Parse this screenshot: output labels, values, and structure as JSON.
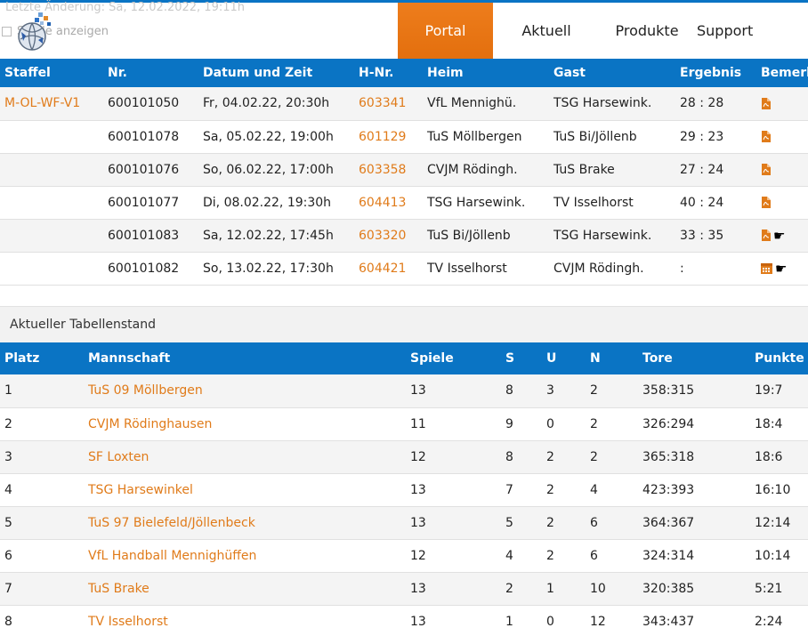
{
  "header": {
    "faded_text": "Letzte Änderung: Sa, 12.02.2022, 19:11h",
    "show_games_label": "Spiele anzeigen",
    "nav": [
      "Portal",
      "Aktuell",
      "Produkte",
      "Support"
    ]
  },
  "games": {
    "headers": [
      "Staffel",
      "Nr.",
      "Datum und Zeit",
      "H-Nr.",
      "Heim",
      "Gast",
      "Ergebnis",
      "Bemerk"
    ],
    "rows": [
      {
        "staffel": "M-OL-WF-V1",
        "nr": "600101050",
        "datum": "Fr, 04.02.22, 20:30h",
        "hnr": "603341",
        "heim": "VfL Mennighü.",
        "gast": "TSG Harsewink.",
        "ergebnis": "28 : 28",
        "icons": [
          "pdf-icon"
        ]
      },
      {
        "staffel": "",
        "nr": "600101078",
        "datum": "Sa, 05.02.22, 19:00h",
        "hnr": "601129",
        "heim": "TuS Möllbergen",
        "gast": "TuS Bi/Jöllenb",
        "ergebnis": "29 : 23",
        "icons": [
          "pdf-icon"
        ]
      },
      {
        "staffel": "",
        "nr": "600101076",
        "datum": "So, 06.02.22, 17:00h",
        "hnr": "603358",
        "heim": "CVJM Rödingh.",
        "gast": "TuS Brake",
        "ergebnis": "27 : 24",
        "icons": [
          "pdf-icon"
        ]
      },
      {
        "staffel": "",
        "nr": "600101077",
        "datum": "Di, 08.02.22, 19:30h",
        "hnr": "604413",
        "heim": "TSG Harsewink.",
        "gast": "TV Isselhorst",
        "ergebnis": "40 : 24",
        "icons": [
          "pdf-icon"
        ]
      },
      {
        "staffel": "",
        "nr": "600101083",
        "datum": "Sa, 12.02.22, 17:45h",
        "hnr": "603320",
        "heim": "TuS Bi/Jöllenb",
        "gast": "TSG Harsewink.",
        "ergebnis": "33 : 35",
        "icons": [
          "pdf-icon",
          "pointing-hand-icon"
        ]
      },
      {
        "staffel": "",
        "nr": "600101082",
        "datum": "So, 13.02.22, 17:30h",
        "hnr": "604421",
        "heim": "TV Isselhorst",
        "gast": "CVJM Rödingh.",
        "ergebnis": ":",
        "icons": [
          "calendar-icon",
          "pointing-hand-icon"
        ]
      }
    ]
  },
  "standings": {
    "title": "Aktueller Tabellenstand",
    "headers": [
      "Platz",
      "Mannschaft",
      "Spiele",
      "S",
      "U",
      "N",
      "Tore",
      "Punkte"
    ],
    "rows": [
      {
        "platz": "1",
        "team": "TuS 09 Möllbergen",
        "spiele": "13",
        "s": "8",
        "u": "3",
        "n": "2",
        "tore": "358:315",
        "punkte": "19:7"
      },
      {
        "platz": "2",
        "team": "CVJM Rödinghausen",
        "spiele": "11",
        "s": "9",
        "u": "0",
        "n": "2",
        "tore": "326:294",
        "punkte": "18:4"
      },
      {
        "platz": "3",
        "team": "SF Loxten",
        "spiele": "12",
        "s": "8",
        "u": "2",
        "n": "2",
        "tore": "365:318",
        "punkte": "18:6"
      },
      {
        "platz": "4",
        "team": "TSG Harsewinkel",
        "spiele": "13",
        "s": "7",
        "u": "2",
        "n": "4",
        "tore": "423:393",
        "punkte": "16:10"
      },
      {
        "platz": "5",
        "team": "TuS 97 Bielefeld/Jöllenbeck",
        "spiele": "13",
        "s": "5",
        "u": "2",
        "n": "6",
        "tore": "364:367",
        "punkte": "12:14"
      },
      {
        "platz": "6",
        "team": "VfL Handball Mennighüffen",
        "spiele": "12",
        "s": "4",
        "u": "2",
        "n": "6",
        "tore": "324:314",
        "punkte": "10:14"
      },
      {
        "platz": "7",
        "team": "TuS Brake",
        "spiele": "13",
        "s": "2",
        "u": "1",
        "n": "10",
        "tore": "320:385",
        "punkte": "5:21"
      },
      {
        "platz": "8",
        "team": "TV Isselhorst",
        "spiele": "13",
        "s": "1",
        "u": "0",
        "n": "12",
        "tore": "343:437",
        "punkte": "2:24"
      }
    ]
  },
  "colors": {
    "primary": "#0a74c4",
    "accent": "#e07b1a",
    "nav_active": "#e8740f"
  }
}
